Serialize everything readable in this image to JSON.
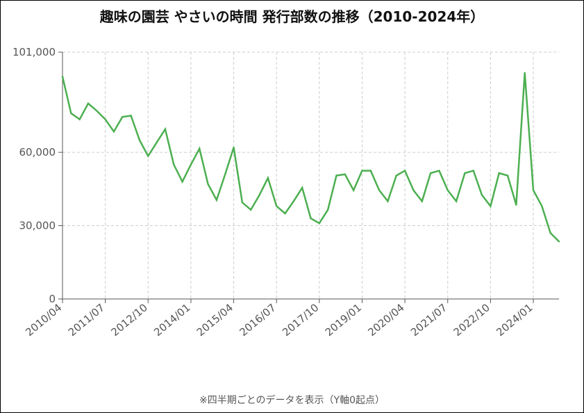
{
  "chart_data": {
    "type": "line",
    "title": "趣味の園芸 やさいの時間 発行部数の推移（2010-2024年）",
    "note": "※四半期ごとのデータを表示（Y軸0起点）",
    "xlabel": "",
    "ylabel": "",
    "ylim": [
      0,
      101000
    ],
    "y_ticks": [
      {
        "value": 0,
        "label": "0"
      },
      {
        "value": 30000,
        "label": "30,000"
      },
      {
        "value": 60000,
        "label": "60,000"
      },
      {
        "value": 101000,
        "label": "101,000"
      }
    ],
    "x_tick_labels": [
      "2010/04",
      "2011/07",
      "2012/10",
      "2014/01",
      "2015/04",
      "2016/07",
      "2017/10",
      "2019/01",
      "2020/04",
      "2021/07",
      "2022/10",
      "2024/01"
    ],
    "grid": true,
    "line_color": "#4caf50",
    "x": [
      "2010/04",
      "2010/07",
      "2010/10",
      "2011/01",
      "2011/04",
      "2011/07",
      "2011/10",
      "2012/01",
      "2012/04",
      "2012/07",
      "2012/10",
      "2013/01",
      "2013/04",
      "2013/07",
      "2013/10",
      "2014/01",
      "2014/04",
      "2014/07",
      "2014/10",
      "2015/01",
      "2015/04",
      "2015/07",
      "2015/10",
      "2016/01",
      "2016/04",
      "2016/07",
      "2016/10",
      "2017/01",
      "2017/04",
      "2017/07",
      "2017/10",
      "2018/01",
      "2018/04",
      "2018/07",
      "2018/10",
      "2019/01",
      "2019/04",
      "2019/07",
      "2019/10",
      "2020/01",
      "2020/04",
      "2020/07",
      "2020/10",
      "2021/01",
      "2021/04",
      "2021/07",
      "2021/10",
      "2022/01",
      "2022/04",
      "2022/07",
      "2022/10",
      "2023/01",
      "2023/04",
      "2023/07",
      "2023/10",
      "2024/01",
      "2024/04",
      "2024/07",
      "2024/10"
    ],
    "values": [
      91000,
      76000,
      73500,
      80000,
      77000,
      73500,
      68500,
      74500,
      75000,
      65000,
      58500,
      64000,
      69500,
      55000,
      48000,
      55000,
      61500,
      47000,
      40500,
      51000,
      62000,
      39500,
      36500,
      42500,
      49500,
      38000,
      35000,
      40000,
      45500,
      33000,
      31000,
      36500,
      50500,
      51000,
      44500,
      52500,
      52500,
      44500,
      40000,
      50500,
      52500,
      44500,
      40000,
      51500,
      52500,
      44500,
      40000,
      51500,
      52500,
      42500,
      38000,
      51500,
      50500,
      38500,
      92500,
      44500,
      38000,
      27000,
      23500
    ]
  }
}
